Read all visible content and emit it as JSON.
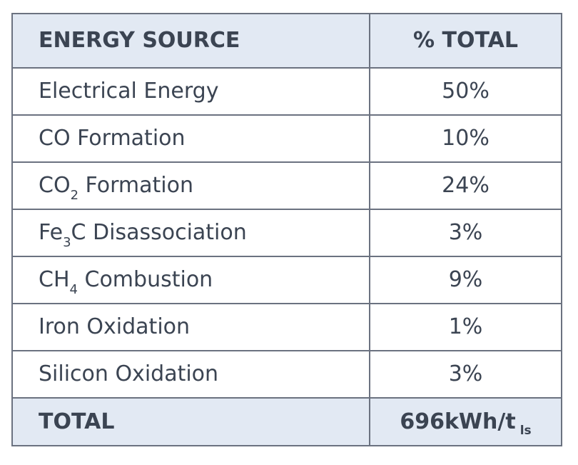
{
  "table": {
    "headers": {
      "source": "ENERGY SOURCE",
      "total": "% TOTAL"
    },
    "rows": [
      {
        "pre": "Electrical Energy",
        "sub": "",
        "post": "",
        "value": "50%"
      },
      {
        "pre": "CO Formation",
        "sub": "",
        "post": "",
        "value": "10%"
      },
      {
        "pre": "CO",
        "sub": "2",
        "post": " Formation",
        "value": "24%"
      },
      {
        "pre": "Fe",
        "sub": "3",
        "post": "C Disassociation",
        "value": "3%"
      },
      {
        "pre": "CH",
        "sub": "4",
        "post": " Combustion",
        "value": "9%"
      },
      {
        "pre": "Iron Oxidation",
        "sub": "",
        "post": "",
        "value": "1%"
      },
      {
        "pre": "Silicon Oxidation",
        "sub": "",
        "post": "",
        "value": "3%"
      }
    ],
    "total": {
      "label": "TOTAL",
      "value": "696kWh/t",
      "unit_sub": "ls"
    }
  }
}
